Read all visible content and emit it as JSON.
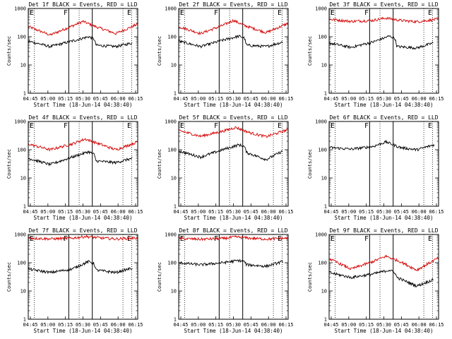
{
  "figure": {
    "ylabel": "Counts/sec",
    "xlabel": "Start Time (18-Jun-14 04:38:40)",
    "x_ticks": [
      "04:45",
      "05:00",
      "05:15",
      "05:30",
      "05:45",
      "06:00",
      "06:15"
    ],
    "y_ticks": [
      "1",
      "10",
      "100",
      "1000"
    ],
    "marker_letters": [
      "E",
      "F",
      "E"
    ],
    "colors": {
      "events": "#000000",
      "lld": "#d40000",
      "axes": "#000000"
    }
  },
  "chart_data": [
    {
      "type": "line",
      "title": "Det 1f BLACK = Events, RED = LLD",
      "ylim": [
        1,
        1000
      ],
      "log_y": true,
      "series": [
        {
          "color": "#d40000",
          "points": [
            [
              0,
              230
            ],
            [
              0.2,
              115
            ],
            [
              0.4,
              240
            ],
            [
              0.5,
              350
            ],
            [
              0.6,
              240
            ],
            [
              0.8,
              130
            ],
            [
              1,
              280
            ]
          ]
        },
        {
          "color": "#000000",
          "points": [
            [
              0,
              70
            ],
            [
              0.2,
              45
            ],
            [
              0.4,
              70
            ],
            [
              0.55,
              100
            ],
            [
              0.6,
              85
            ],
            [
              0.62,
              50
            ],
            [
              0.8,
              45
            ],
            [
              0.95,
              60
            ]
          ]
        }
      ]
    },
    {
      "type": "line",
      "title": "Det 2f BLACK = Events, RED = LLD",
      "ylim": [
        1,
        1000
      ],
      "log_y": true,
      "series": [
        {
          "color": "#d40000",
          "points": [
            [
              0,
              230
            ],
            [
              0.2,
              130
            ],
            [
              0.4,
              250
            ],
            [
              0.5,
              380
            ],
            [
              0.6,
              250
            ],
            [
              0.8,
              140
            ],
            [
              1,
              300
            ]
          ]
        },
        {
          "color": "#000000",
          "points": [
            [
              0,
              70
            ],
            [
              0.2,
              45
            ],
            [
              0.4,
              75
            ],
            [
              0.55,
              105
            ],
            [
              0.6,
              90
            ],
            [
              0.62,
              50
            ],
            [
              0.8,
              45
            ],
            [
              0.95,
              65
            ]
          ]
        }
      ]
    },
    {
      "type": "line",
      "title": "Det 3f BLACK = Events, RED = LLD",
      "ylim": [
        1,
        1000
      ],
      "log_y": true,
      "series": [
        {
          "color": "#d40000",
          "points": [
            [
              0,
              420
            ],
            [
              0.2,
              350
            ],
            [
              0.4,
              380
            ],
            [
              0.52,
              460
            ],
            [
              0.65,
              380
            ],
            [
              0.8,
              340
            ],
            [
              1,
              420
            ]
          ]
        },
        {
          "color": "#000000",
          "points": [
            [
              0,
              60
            ],
            [
              0.2,
              42
            ],
            [
              0.4,
              65
            ],
            [
              0.55,
              105
            ],
            [
              0.6,
              90
            ],
            [
              0.62,
              45
            ],
            [
              0.8,
              40
            ],
            [
              0.95,
              60
            ]
          ]
        }
      ]
    },
    {
      "type": "line",
      "title": "Det 4f BLACK = Events, RED = LLD",
      "ylim": [
        1,
        1000
      ],
      "log_y": true,
      "series": [
        {
          "color": "#d40000",
          "points": [
            [
              0,
              160
            ],
            [
              0.2,
              100
            ],
            [
              0.4,
              160
            ],
            [
              0.52,
              240
            ],
            [
              0.65,
              160
            ],
            [
              0.8,
              100
            ],
            [
              1,
              190
            ]
          ]
        },
        {
          "color": "#000000",
          "points": [
            [
              0,
              50
            ],
            [
              0.2,
              30
            ],
            [
              0.4,
              55
            ],
            [
              0.55,
              85
            ],
            [
              0.6,
              70
            ],
            [
              0.62,
              40
            ],
            [
              0.8,
              35
            ],
            [
              0.95,
              50
            ]
          ]
        }
      ]
    },
    {
      "type": "line",
      "title": "Det 5f BLACK = Events, RED = LLD",
      "ylim": [
        1,
        1000
      ],
      "log_y": true,
      "series": [
        {
          "color": "#d40000",
          "points": [
            [
              0,
              480
            ],
            [
              0.2,
              300
            ],
            [
              0.4,
              450
            ],
            [
              0.52,
              620
            ],
            [
              0.65,
              400
            ],
            [
              0.8,
              290
            ],
            [
              1,
              520
            ]
          ]
        },
        {
          "color": "#000000",
          "points": [
            [
              0,
              90
            ],
            [
              0.2,
              55
            ],
            [
              0.4,
              100
            ],
            [
              0.55,
              150
            ],
            [
              0.6,
              130
            ],
            [
              0.62,
              80
            ],
            [
              0.8,
              45
            ],
            [
              0.95,
              90
            ]
          ]
        }
      ]
    },
    {
      "type": "line",
      "title": "Det 6f BLACK = Events, RED = LLD",
      "ylim": [
        1,
        1000
      ],
      "log_y": true,
      "series": [
        {
          "color": "#000000",
          "points": [
            [
              0,
              120
            ],
            [
              0.2,
              105
            ],
            [
              0.4,
              130
            ],
            [
              0.52,
              190
            ],
            [
              0.65,
              120
            ],
            [
              0.8,
              100
            ],
            [
              0.96,
              150
            ]
          ]
        }
      ]
    },
    {
      "type": "line",
      "title": "Det 7f BLACK = Events, RED = LLD",
      "ylim": [
        1,
        1000
      ],
      "log_y": true,
      "series": [
        {
          "color": "#d40000",
          "points": [
            [
              0,
              750
            ],
            [
              0.2,
              700
            ],
            [
              0.4,
              740
            ],
            [
              0.52,
              850
            ],
            [
              0.65,
              760
            ],
            [
              0.8,
              700
            ],
            [
              1,
              760
            ]
          ]
        },
        {
          "color": "#000000",
          "points": [
            [
              0,
              60
            ],
            [
              0.2,
              45
            ],
            [
              0.4,
              60
            ],
            [
              0.55,
              110
            ],
            [
              0.6,
              95
            ],
            [
              0.62,
              55
            ],
            [
              0.8,
              45
            ],
            [
              0.95,
              65
            ]
          ]
        }
      ]
    },
    {
      "type": "line",
      "title": "Det 8f BLACK = Events, RED = LLD",
      "ylim": [
        1,
        1000
      ],
      "log_y": true,
      "series": [
        {
          "color": "#d40000",
          "points": [
            [
              0,
              720
            ],
            [
              0.2,
              680
            ],
            [
              0.4,
              720
            ],
            [
              0.52,
              820
            ],
            [
              0.65,
              740
            ],
            [
              0.8,
              690
            ],
            [
              1,
              740
            ]
          ]
        },
        {
          "color": "#000000",
          "points": [
            [
              0,
              100
            ],
            [
              0.2,
              85
            ],
            [
              0.4,
              100
            ],
            [
              0.55,
              120
            ],
            [
              0.6,
              110
            ],
            [
              0.62,
              85
            ],
            [
              0.8,
              75
            ],
            [
              0.95,
              110
            ]
          ]
        }
      ]
    },
    {
      "type": "line",
      "title": "Det 9f BLACK = Events, RED = LLD",
      "ylim": [
        1,
        1000
      ],
      "log_y": true,
      "series": [
        {
          "color": "#d40000",
          "points": [
            [
              0,
              140
            ],
            [
              0.2,
              60
            ],
            [
              0.4,
              110
            ],
            [
              0.52,
              170
            ],
            [
              0.65,
              110
            ],
            [
              0.8,
              55
            ],
            [
              1,
              150
            ]
          ]
        },
        {
          "color": "#000000",
          "points": [
            [
              0,
              45
            ],
            [
              0.2,
              30
            ],
            [
              0.4,
              40
            ],
            [
              0.55,
              55
            ],
            [
              0.6,
              45
            ],
            [
              0.62,
              30
            ],
            [
              0.8,
              15
            ],
            [
              0.95,
              25
            ]
          ]
        }
      ]
    }
  ]
}
